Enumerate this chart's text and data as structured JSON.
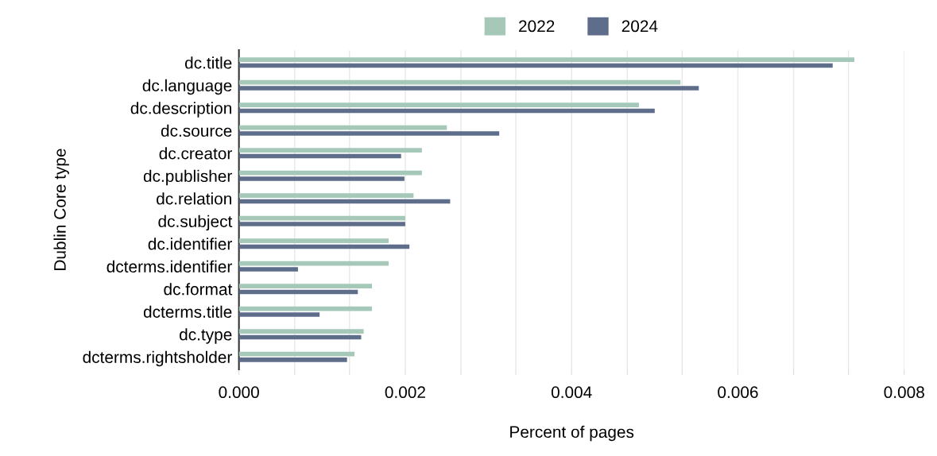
{
  "chart_data": {
    "type": "bar",
    "orientation": "horizontal",
    "xlabel": "Percent of pages",
    "ylabel": "Dublin Core type",
    "categories": [
      "dc.title",
      "dc.language",
      "dc.description",
      "dc.source",
      "dc.creator",
      "dc.publisher",
      "dc.relation",
      "dc.subject",
      "dc.identifier",
      "dcterms.identifier",
      "dc.format",
      "dcterms.title",
      "dc.type",
      "dcterms.rightsholder"
    ],
    "series": [
      {
        "name": "2022",
        "color": "#a5c8b8",
        "values": [
          0.0074,
          0.00531,
          0.00481,
          0.0025,
          0.0022,
          0.0022,
          0.0021,
          0.002,
          0.0018,
          0.0018,
          0.0016,
          0.0016,
          0.0015,
          0.00139
        ]
      },
      {
        "name": "2024",
        "color": "#5e6e8a",
        "values": [
          0.00714,
          0.00553,
          0.005,
          0.00313,
          0.00195,
          0.00199,
          0.00254,
          0.002,
          0.00205,
          0.00071,
          0.00143,
          0.00097,
          0.00147,
          0.0013
        ]
      }
    ],
    "xlim": [
      0,
      0.008
    ],
    "xticks": [
      {
        "value": 0,
        "label": "0.000"
      },
      {
        "value": 0.00067,
        "label": null
      },
      {
        "value": 0.00133,
        "label": null
      },
      {
        "value": 0.002,
        "label": "0.002"
      },
      {
        "value": 0.00267,
        "label": null
      },
      {
        "value": 0.00333,
        "label": null
      },
      {
        "value": 0.004,
        "label": "0.004"
      },
      {
        "value": 0.00467,
        "label": null
      },
      {
        "value": 0.00533,
        "label": null
      },
      {
        "value": 0.006,
        "label": "0.006"
      },
      {
        "value": 0.00667,
        "label": null
      },
      {
        "value": 0.00733,
        "label": null
      },
      {
        "value": 0.008,
        "label": "0.008"
      }
    ],
    "grid": "x",
    "legend": "top"
  }
}
